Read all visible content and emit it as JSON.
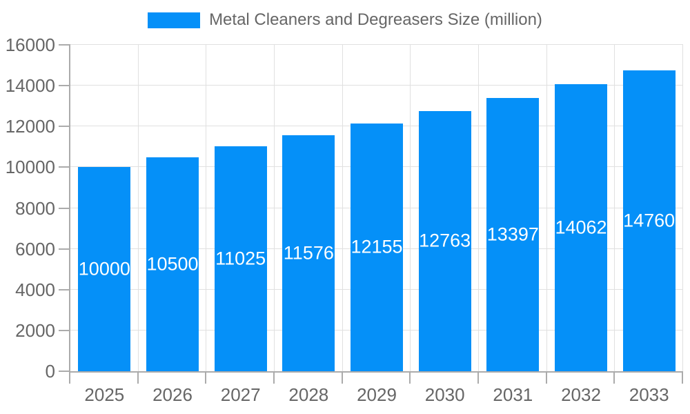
{
  "legend": {
    "label": "Metal Cleaners and Degreasers Size (million)",
    "position": "top"
  },
  "chart_data": {
    "type": "bar",
    "title": "",
    "xlabel": "",
    "ylabel": "",
    "categories": [
      "2025",
      "2026",
      "2027",
      "2028",
      "2029",
      "2030",
      "2031",
      "2032",
      "2033"
    ],
    "series": [
      {
        "name": "Metal Cleaners and Degreasers Size (million)",
        "values": [
          10000,
          10500,
          11025,
          11576,
          12155,
          12763,
          13397,
          14062,
          14760
        ]
      }
    ],
    "bar_labels_shown": true,
    "ylim": [
      0,
      16000
    ],
    "yticks": [
      0,
      2000,
      4000,
      6000,
      8000,
      10000,
      12000,
      14000,
      16000
    ],
    "grid": true,
    "legend_position": "top",
    "colors": {
      "bar": "#0590f8",
      "bar_label_text": "#ffffff",
      "axis_text": "#666666",
      "axis_line": "#ababab",
      "gridline": "#e0e0e0",
      "background": "#ffffff"
    }
  }
}
